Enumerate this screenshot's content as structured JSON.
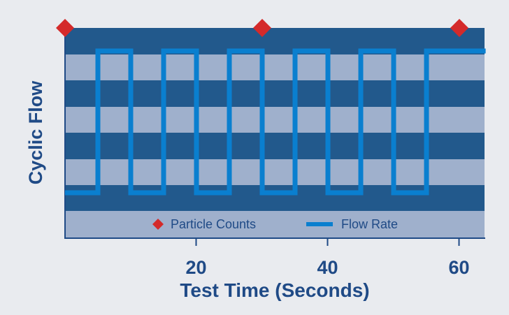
{
  "chart_data": {
    "type": "line",
    "xlabel": "Test Time (Seconds)",
    "ylabel": "Cyclic Flow",
    "xlim": [
      0,
      64
    ],
    "x_ticks": [
      20,
      40,
      60
    ],
    "grid": false,
    "legend_position": "bottom-inside",
    "series": [
      {
        "name": "Flow Rate",
        "kind": "square-wave",
        "levels": [
          "low",
          "high"
        ],
        "transitions": [
          {
            "t": 0,
            "level": "low"
          },
          {
            "t": 5,
            "level": "high"
          },
          {
            "t": 10,
            "level": "low"
          },
          {
            "t": 15,
            "level": "high"
          },
          {
            "t": 20,
            "level": "low"
          },
          {
            "t": 25,
            "level": "high"
          },
          {
            "t": 30,
            "level": "low"
          },
          {
            "t": 35,
            "level": "high"
          },
          {
            "t": 40,
            "level": "low"
          },
          {
            "t": 45,
            "level": "high"
          },
          {
            "t": 50,
            "level": "low"
          },
          {
            "t": 55,
            "level": "high"
          },
          {
            "t": 64,
            "level": "high"
          }
        ]
      },
      {
        "name": "Particle Counts",
        "kind": "markers",
        "x": [
          0,
          30,
          60
        ]
      }
    ],
    "legend": [
      {
        "label": "Particle Counts",
        "marker": "diamond"
      },
      {
        "label": "Flow Rate",
        "marker": "line"
      }
    ]
  },
  "colors": {
    "background": "#e9ebef",
    "band_dark": "#22598c",
    "band_light": "#9fb0cc",
    "flow_line": "#0a7fcf",
    "marker": "#d42a2a",
    "text": "#1f4a86",
    "axis": "#1f4a86"
  }
}
